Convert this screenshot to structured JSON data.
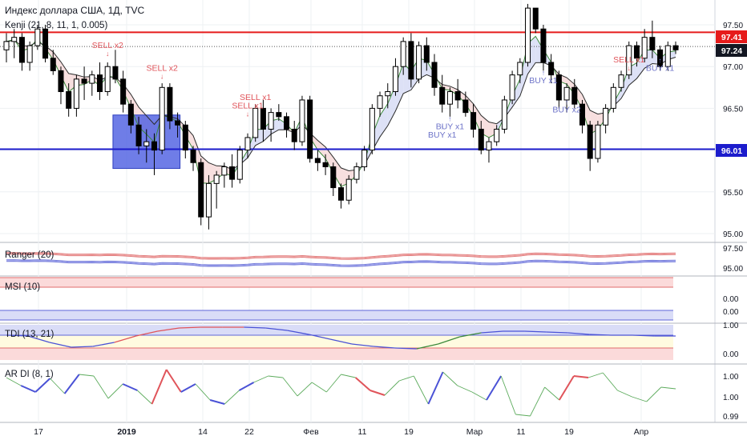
{
  "header": {
    "title": "Индекс доллара США, 1Д, TVC",
    "indicator": "Kenji (21, 8, 11, 1, 0.005)"
  },
  "panes": {
    "ranger": "Ranger (20)",
    "msi": "MSI (10)",
    "tdi": "TDI (13, 21)",
    "ardi": "AR DI (8, 1)"
  },
  "price_labels": {
    "red_level": "97.41",
    "current": "97.24",
    "blue_level": "96.01"
  },
  "colors": {
    "up": "#ffffff",
    "down": "#000000",
    "red_line": "#e61b1b",
    "blue_line": "#1c1ccc",
    "sell": "#e0545a",
    "buy": "#6d73c8",
    "box": "#4758e0"
  },
  "chart_data": [
    {
      "type": "candlestick",
      "title": "Индекс доллара США, 1Д, TVC",
      "ylim": [
        94.9,
        97.75
      ],
      "yticks": [
        "97.50",
        "97.00",
        "96.50",
        "96.00",
        "95.50",
        "95.00"
      ],
      "x_labels": [
        "17",
        "2019",
        "14",
        "22",
        "Фев",
        "11",
        "19",
        "Мар",
        "11",
        "19",
        "Апр"
      ],
      "horizontal_levels": [
        97.41,
        96.01
      ],
      "current_price": 97.24,
      "ohlc": [
        [
          97.2,
          97.4,
          97.05,
          97.3
        ],
        [
          97.3,
          97.45,
          97.1,
          97.35
        ],
        [
          97.35,
          97.4,
          96.95,
          97.05
        ],
        [
          97.05,
          97.3,
          96.95,
          97.25
        ],
        [
          97.25,
          97.5,
          97.2,
          97.45
        ],
        [
          97.45,
          97.5,
          97.05,
          97.1
        ],
        [
          97.1,
          97.2,
          96.9,
          96.95
        ],
        [
          96.95,
          97.0,
          96.55,
          96.7
        ],
        [
          96.7,
          96.8,
          96.4,
          96.5
        ],
        [
          96.5,
          96.9,
          96.4,
          96.85
        ],
        [
          96.85,
          97.0,
          96.6,
          96.8
        ],
        [
          96.8,
          96.95,
          96.65,
          96.9
        ],
        [
          96.9,
          97.05,
          96.6,
          96.7
        ],
        [
          96.7,
          97.05,
          96.65,
          97.0
        ],
        [
          97.0,
          97.2,
          96.8,
          96.85
        ],
        [
          96.85,
          96.95,
          96.45,
          96.55
        ],
        [
          96.55,
          96.6,
          96.2,
          96.3
        ],
        [
          96.3,
          96.4,
          95.95,
          96.05
        ],
        [
          96.05,
          96.25,
          95.85,
          96.1
        ],
        [
          96.1,
          96.2,
          95.7,
          96.0
        ],
        [
          96.0,
          96.8,
          95.95,
          96.75
        ],
        [
          96.75,
          96.8,
          96.25,
          96.35
        ],
        [
          96.35,
          96.45,
          96.15,
          96.3
        ],
        [
          96.3,
          96.35,
          95.9,
          96.0
        ],
        [
          96.0,
          96.05,
          95.75,
          95.85
        ],
        [
          95.85,
          95.9,
          95.1,
          95.2
        ],
        [
          95.2,
          95.7,
          95.05,
          95.6
        ],
        [
          95.6,
          95.75,
          95.3,
          95.7
        ],
        [
          95.7,
          95.85,
          95.55,
          95.8
        ],
        [
          95.8,
          95.95,
          95.55,
          95.65
        ],
        [
          95.65,
          96.05,
          95.6,
          96.0
        ],
        [
          96.0,
          96.2,
          95.9,
          96.15
        ],
        [
          96.15,
          96.55,
          96.1,
          96.5
        ],
        [
          96.5,
          96.6,
          96.1,
          96.25
        ],
        [
          96.25,
          96.5,
          96.1,
          96.45
        ],
        [
          96.45,
          96.55,
          96.35,
          96.4
        ],
        [
          96.4,
          96.45,
          96.15,
          96.25
        ],
        [
          96.25,
          96.35,
          96.0,
          96.1
        ],
        [
          96.1,
          96.65,
          96.05,
          96.6
        ],
        [
          96.6,
          96.65,
          95.85,
          95.9
        ],
        [
          95.9,
          96.0,
          95.75,
          95.85
        ],
        [
          95.85,
          95.95,
          95.7,
          95.8
        ],
        [
          95.8,
          95.85,
          95.45,
          95.55
        ],
        [
          95.55,
          95.6,
          95.3,
          95.4
        ],
        [
          95.4,
          95.7,
          95.35,
          95.65
        ],
        [
          95.65,
          95.85,
          95.6,
          95.8
        ],
        [
          95.8,
          96.05,
          95.75,
          96.0
        ],
        [
          96.0,
          96.55,
          95.95,
          96.5
        ],
        [
          96.5,
          96.7,
          96.4,
          96.65
        ],
        [
          96.65,
          96.8,
          96.5,
          96.7
        ],
        [
          96.7,
          97.1,
          96.65,
          97.0
        ],
        [
          97.0,
          97.35,
          96.9,
          97.3
        ],
        [
          97.3,
          97.4,
          96.75,
          96.85
        ],
        [
          96.85,
          97.3,
          96.8,
          97.25
        ],
        [
          97.25,
          97.35,
          96.95,
          97.05
        ],
        [
          97.05,
          97.15,
          96.65,
          96.75
        ],
        [
          96.75,
          96.9,
          96.45,
          96.55
        ],
        [
          96.55,
          96.75,
          96.4,
          96.7
        ],
        [
          96.7,
          96.85,
          96.5,
          96.6
        ],
        [
          96.6,
          96.7,
          96.4,
          96.45
        ],
        [
          96.45,
          96.55,
          96.15,
          96.25
        ],
        [
          96.25,
          96.35,
          95.95,
          96.0
        ],
        [
          96.0,
          96.15,
          95.85,
          96.1
        ],
        [
          96.1,
          96.3,
          96.05,
          96.25
        ],
        [
          96.25,
          96.65,
          96.2,
          96.6
        ],
        [
          96.6,
          96.95,
          96.55,
          96.9
        ],
        [
          96.9,
          97.1,
          96.8,
          97.05
        ],
        [
          97.05,
          97.75,
          97.0,
          97.7
        ],
        [
          97.7,
          97.7,
          97.4,
          97.45
        ],
        [
          97.45,
          97.5,
          96.95,
          97.05
        ],
        [
          97.05,
          97.15,
          96.8,
          96.9
        ],
        [
          96.9,
          96.95,
          96.5,
          96.6
        ],
        [
          96.6,
          96.8,
          96.45,
          96.75
        ],
        [
          96.75,
          96.85,
          96.5,
          96.55
        ],
        [
          96.55,
          96.6,
          96.2,
          96.3
        ],
        [
          96.3,
          96.35,
          95.75,
          95.9
        ],
        [
          95.9,
          96.35,
          95.85,
          96.3
        ],
        [
          96.3,
          96.55,
          96.2,
          96.5
        ],
        [
          96.5,
          96.8,
          96.45,
          96.75
        ],
        [
          96.75,
          96.95,
          96.7,
          96.9
        ],
        [
          96.9,
          97.3,
          96.85,
          97.25
        ],
        [
          97.25,
          97.3,
          97.0,
          97.1
        ],
        [
          97.1,
          97.45,
          97.05,
          97.35
        ],
        [
          97.35,
          97.55,
          97.1,
          97.2
        ],
        [
          97.2,
          97.25,
          96.95,
          97.0
        ],
        [
          97.0,
          97.3,
          96.95,
          97.25
        ],
        [
          97.25,
          97.3,
          97.15,
          97.2
        ]
      ],
      "signals": [
        {
          "text": "SELL x2",
          "index": 13,
          "price": 97.22,
          "kind": "sell"
        },
        {
          "text": "SELL x2",
          "index": 20,
          "price": 96.95,
          "kind": "sell"
        },
        {
          "text": "SELL x1",
          "index": 32,
          "price": 96.6,
          "kind": "sell"
        },
        {
          "text": "SELL x1",
          "index": 31,
          "price": 96.5,
          "kind": "sell"
        },
        {
          "text": "BUY x1",
          "index": 57,
          "price": 96.25,
          "kind": "buy"
        },
        {
          "text": "BUY x1",
          "index": 56,
          "price": 96.15,
          "kind": "buy"
        },
        {
          "text": "BUY x1",
          "index": 69,
          "price": 96.8,
          "kind": "buy"
        },
        {
          "text": "BUY x2",
          "index": 72,
          "price": 96.45,
          "kind": "buy"
        },
        {
          "text": "SELL x1",
          "index": 80,
          "price": 97.05,
          "kind": "sell"
        },
        {
          "text": "BUY x1",
          "index": 84,
          "price": 96.95,
          "kind": "buy"
        }
      ]
    },
    {
      "type": "line",
      "title": "Ranger (20)",
      "yticks": [
        "97.50",
        "95.00"
      ]
    },
    {
      "type": "line",
      "title": "MSI (10)",
      "yticks": [
        "0.00",
        "0.00"
      ]
    },
    {
      "type": "line",
      "title": "TDI (13, 21)",
      "yticks": [
        "1.00",
        "0.00"
      ]
    },
    {
      "type": "line",
      "title": "AR DI (8, 1)",
      "yticks": [
        "1.00",
        "1.00",
        "0.99"
      ]
    }
  ]
}
